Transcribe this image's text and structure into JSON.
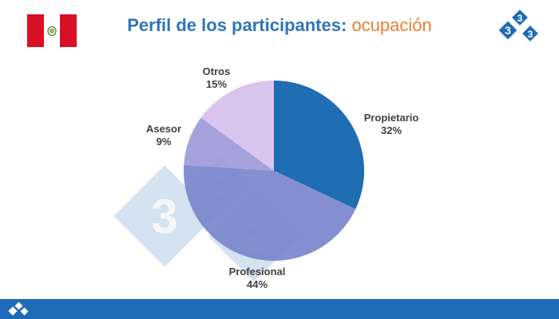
{
  "header": {
    "title_main": "Perfil de los participantes:",
    "title_accent": "ocupación",
    "title_color": "#2e75b6",
    "accent_color": "#ed7d31"
  },
  "flag": {
    "name": "peru-flag-icon",
    "colors": [
      "#d91023",
      "#ffffff",
      "#d91023"
    ]
  },
  "brand": {
    "logo_icon": "333-logo-icon",
    "color": "#1e6bb8",
    "watermark_color": "#1e6bb8"
  },
  "footer": {
    "color": "#1e6bb8"
  },
  "chart_data": {
    "type": "pie",
    "title": "",
    "slices": [
      {
        "label": "Propietario",
        "value": 32,
        "display": "32%",
        "color": "#1f6db3"
      },
      {
        "label": "Profesional",
        "value": 44,
        "display": "44%",
        "color": "#7a86cc"
      },
      {
        "label": "Asesor",
        "value": 9,
        "display": "9%",
        "color": "#9f9bda"
      },
      {
        "label": "Otros",
        "value": 15,
        "display": "15%",
        "color": "#d7c1ee"
      }
    ],
    "label_color": "#404040"
  }
}
